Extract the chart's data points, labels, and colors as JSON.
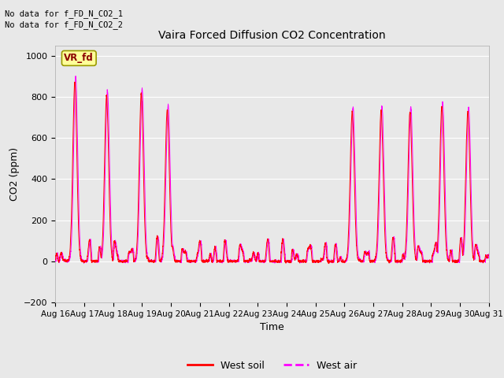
{
  "title": "Vaira Forced Diffusion CO2 Concentration",
  "xlabel": "Time",
  "ylabel": "CO2 (ppm)",
  "ylim": [
    -200,
    1050
  ],
  "yticks": [
    -200,
    0,
    200,
    400,
    600,
    800,
    1000
  ],
  "text_lines": [
    "No data for f_FD_N_CO2_1",
    "No data for f_FD_N_CO2_2"
  ],
  "legend_label1": "West soil",
  "legend_label2": "West air",
  "legend_color1": "#ff0000",
  "legend_color2": "#ff00ff",
  "line_color1": "#ff0000",
  "line_color2": "#ff00ff",
  "box_label": "VR_fd",
  "box_bg": "#ffff99",
  "box_border": "#999900",
  "bg_color": "#e8e8e8",
  "plot_bg": "#e8e8e8",
  "grid_color": "#ffffff",
  "xtick_labels": [
    "Aug 16",
    "Aug 17",
    "Aug 18",
    "Aug 19",
    "Aug 20",
    "Aug 21",
    "Aug 22",
    "Aug 23",
    "Aug 24",
    "Aug 25",
    "Aug 26",
    "Aug 27",
    "Aug 28",
    "Aug 29",
    "Aug 30",
    "Aug 31"
  ],
  "spike_days": [
    0.7,
    1.8,
    3.0,
    3.9,
    10.3,
    11.3,
    12.3,
    13.4,
    14.3
  ],
  "spike_heights": [
    900,
    830,
    840,
    760,
    750,
    755,
    750,
    775,
    750
  ],
  "num_days": 16
}
